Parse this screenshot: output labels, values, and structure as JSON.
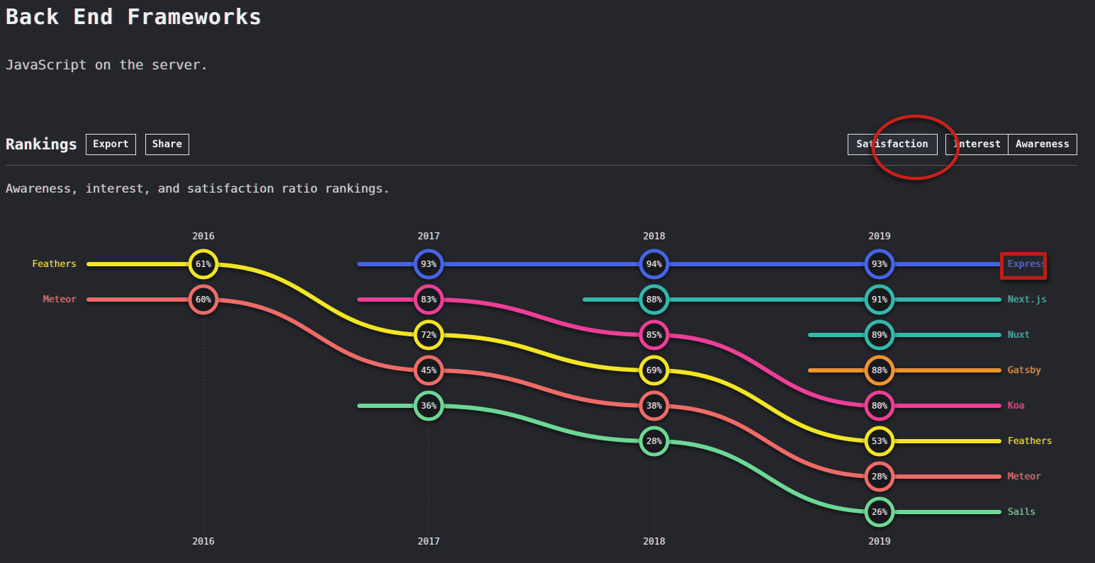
{
  "page": {
    "title": "Back End Frameworks",
    "subtitle": "JavaScript on the server.",
    "section_title": "Rankings",
    "toolbar": {
      "export_label": "Export",
      "share_label": "Share"
    },
    "metric_tabs": [
      {
        "label": "Satisfaction",
        "active": true
      },
      {
        "label": "Interest",
        "active": false
      },
      {
        "label": "Awareness",
        "active": false
      }
    ],
    "description": "Awareness, interest, and satisfaction ratio rankings."
  },
  "colors": {
    "background": "#24262b",
    "node_fill": "#17191c",
    "annotation_red": "#c8201c",
    "express_blue": "#4763e8",
    "teal": "#33b8ac",
    "orange": "#ef9430",
    "pink": "#ee3e96",
    "yellow": "#f3e524",
    "salmon": "#ee6b67",
    "green": "#6dd795"
  },
  "chart_data": {
    "type": "bump",
    "metric": "Satisfaction",
    "years": [
      "2016",
      "2017",
      "2018",
      "2019"
    ],
    "year_labels_shown": "top and bottom",
    "series": [
      {
        "name": "Express",
        "color": "#4763e8",
        "points": [
          {
            "year": "2017",
            "rank": 1,
            "value": "93%"
          },
          {
            "year": "2018",
            "rank": 1,
            "value": "94%"
          },
          {
            "year": "2019",
            "rank": 1,
            "value": "93%"
          }
        ]
      },
      {
        "name": "Next.js",
        "color": "#33b8ac",
        "points": [
          {
            "year": "2018",
            "rank": 2,
            "value": "88%"
          },
          {
            "year": "2019",
            "rank": 2,
            "value": "91%"
          }
        ]
      },
      {
        "name": "Nuxt",
        "color": "#33b8ac",
        "points": [
          {
            "year": "2019",
            "rank": 3,
            "value": "89%"
          }
        ]
      },
      {
        "name": "Gatsby",
        "color": "#ef9430",
        "points": [
          {
            "year": "2019",
            "rank": 4,
            "value": "88%"
          }
        ]
      },
      {
        "name": "Koa",
        "color": "#ee3e96",
        "points": [
          {
            "year": "2017",
            "rank": 2,
            "value": "83%"
          },
          {
            "year": "2018",
            "rank": 3,
            "value": "85%"
          },
          {
            "year": "2019",
            "rank": 5,
            "value": "80%"
          }
        ]
      },
      {
        "name": "Feathers",
        "color": "#f3e524",
        "points": [
          {
            "year": "2016",
            "rank": 1,
            "value": "61%"
          },
          {
            "year": "2017",
            "rank": 3,
            "value": "72%"
          },
          {
            "year": "2018",
            "rank": 4,
            "value": "69%"
          },
          {
            "year": "2019",
            "rank": 6,
            "value": "53%"
          }
        ]
      },
      {
        "name": "Meteor",
        "color": "#ee6b67",
        "points": [
          {
            "year": "2016",
            "rank": 2,
            "value": "60%"
          },
          {
            "year": "2017",
            "rank": 4,
            "value": "45%"
          },
          {
            "year": "2018",
            "rank": 5,
            "value": "38%"
          },
          {
            "year": "2019",
            "rank": 7,
            "value": "28%"
          }
        ]
      },
      {
        "name": "Sails",
        "color": "#6dd795",
        "points": [
          {
            "year": "2017",
            "rank": 5,
            "value": "36%"
          },
          {
            "year": "2018",
            "rank": 6,
            "value": "28%"
          },
          {
            "year": "2019",
            "rank": 8,
            "value": "26%"
          }
        ]
      }
    ],
    "left_labels": [
      "Feathers",
      "Meteor"
    ],
    "right_labels": [
      "Express",
      "Next.js",
      "Nuxt",
      "Gatsby",
      "Koa",
      "Feathers",
      "Meteor",
      "Sails"
    ]
  },
  "annotations": {
    "circle_target": "Satisfaction tab",
    "box_target": "Express label"
  }
}
